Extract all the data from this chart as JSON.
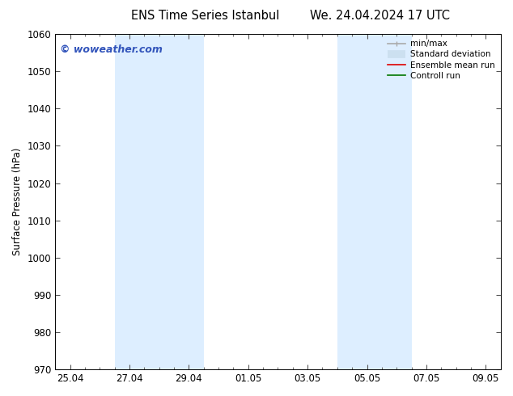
{
  "title_left": "ENS Time Series Istanbul",
  "title_right": "We. 24.04.2024 17 UTC",
  "ylabel": "Surface Pressure (hPa)",
  "ylim": [
    970,
    1060
  ],
  "yticks": [
    970,
    980,
    990,
    1000,
    1010,
    1020,
    1030,
    1040,
    1050,
    1060
  ],
  "xlim_start": -0.5,
  "xlim_end": 14.5,
  "xtick_labels": [
    "25.04",
    "27.04",
    "29.04",
    "01.05",
    "03.05",
    "05.05",
    "07.05",
    "09.05"
  ],
  "xtick_positions": [
    0,
    2,
    4,
    6,
    8,
    10,
    12,
    14
  ],
  "shaded_bands": [
    {
      "x_start": 1.5,
      "x_end": 4.5
    },
    {
      "x_start": 9.0,
      "x_end": 11.5
    }
  ],
  "shaded_color": "#ddeeff",
  "watermark_text": "© woweather.com",
  "watermark_color": "#3355bb",
  "legend_items": [
    {
      "label": "min/max",
      "color": "#aaaaaa",
      "lw": 1.2
    },
    {
      "label": "Standard deviation",
      "color": "#cce0f0",
      "lw": 7
    },
    {
      "label": "Ensemble mean run",
      "color": "#dd0000",
      "lw": 1.2
    },
    {
      "label": "Controll run",
      "color": "#007700",
      "lw": 1.2
    }
  ],
  "bg_color": "#ffffff",
  "tick_color": "#555555",
  "font_size": 8.5,
  "title_fontsize": 10.5,
  "figsize": [
    6.34,
    4.9
  ],
  "dpi": 100
}
